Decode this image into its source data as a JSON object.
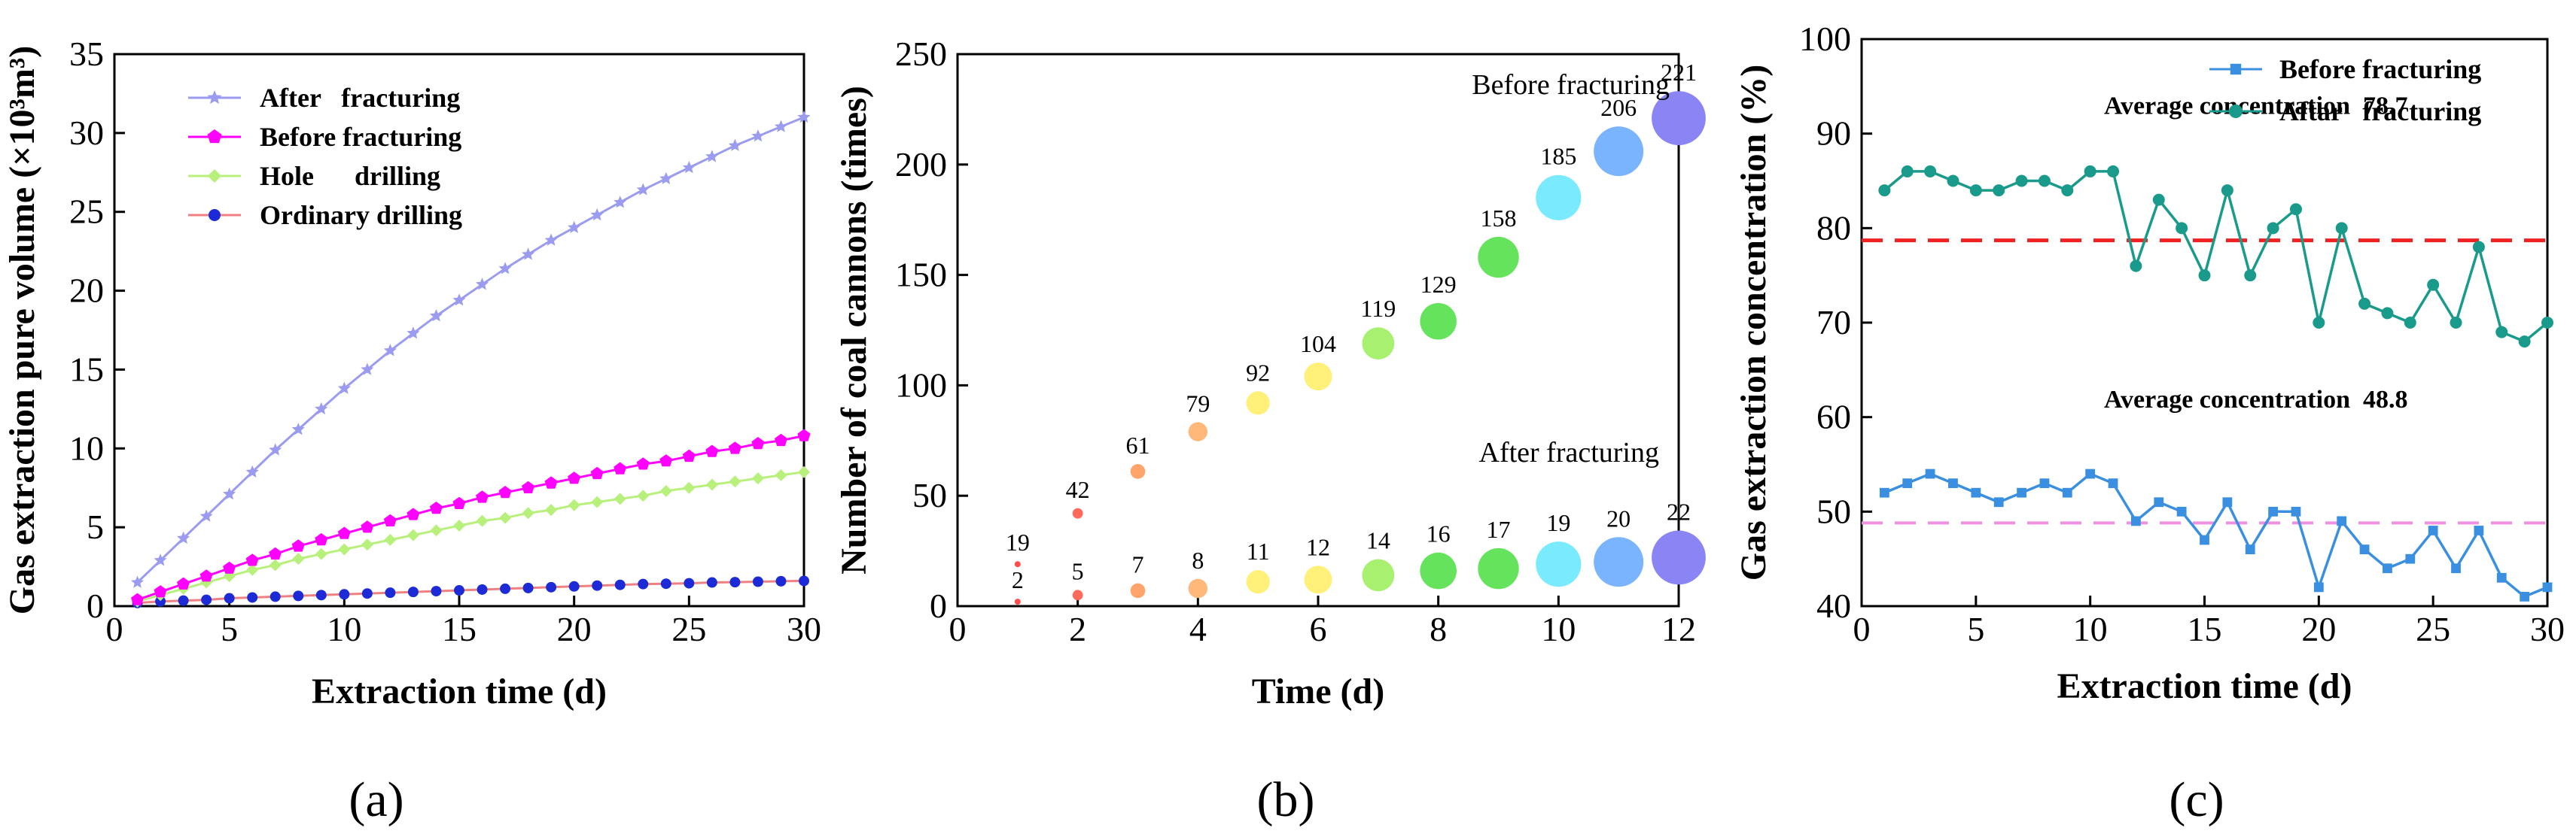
{
  "chart_data": [
    {
      "id": "a",
      "type": "line",
      "panel_label": "(a)",
      "xlabel": "Extraction time (d)",
      "ylabel": "Gas extraction pure volume (×10³m³)",
      "xlim": [
        0,
        30
      ],
      "ylim": [
        0,
        35
      ],
      "xticks": [
        "0",
        "5",
        "10",
        "15",
        "20",
        "25",
        "30"
      ],
      "yticks": [
        "0",
        "5",
        "10",
        "15",
        "20",
        "25",
        "30",
        "35"
      ],
      "legend_position": "top-left",
      "x": [
        1,
        2,
        3,
        4,
        5,
        6,
        7,
        8,
        9,
        10,
        11,
        12,
        13,
        14,
        15,
        16,
        17,
        18,
        19,
        20,
        21,
        22,
        23,
        24,
        25,
        26,
        27,
        28,
        29,
        30
      ],
      "series": [
        {
          "name": "After   fracturing",
          "color": "#9b9bf0",
          "marker": "star",
          "values": [
            1.5,
            2.9,
            4.3,
            5.7,
            7.1,
            8.5,
            9.9,
            11.2,
            12.5,
            13.8,
            15.0,
            16.2,
            17.3,
            18.4,
            19.4,
            20.4,
            21.4,
            22.3,
            23.2,
            24.0,
            24.8,
            25.6,
            26.4,
            27.1,
            27.8,
            28.5,
            29.2,
            29.8,
            30.4,
            31.0
          ]
        },
        {
          "name": "Before fracturing",
          "color": "#ff00ff",
          "marker": "pentagon",
          "values": [
            0.4,
            0.9,
            1.4,
            1.9,
            2.4,
            2.9,
            3.3,
            3.8,
            4.2,
            4.6,
            5.0,
            5.4,
            5.8,
            6.2,
            6.5,
            6.9,
            7.2,
            7.5,
            7.8,
            8.1,
            8.4,
            8.7,
            9.0,
            9.2,
            9.5,
            9.8,
            10.0,
            10.3,
            10.5,
            10.8
          ]
        },
        {
          "name": "Hole      drilling",
          "color": "#b8f07c",
          "marker": "diamond",
          "values": [
            0.3,
            0.7,
            1.1,
            1.5,
            1.9,
            2.3,
            2.6,
            3.0,
            3.3,
            3.6,
            3.9,
            4.2,
            4.5,
            4.8,
            5.1,
            5.4,
            5.6,
            5.9,
            6.1,
            6.4,
            6.6,
            6.8,
            7.0,
            7.3,
            7.5,
            7.7,
            7.9,
            8.1,
            8.3,
            8.5
          ]
        },
        {
          "name": "Ordinary drilling",
          "color": "#1c2bd6",
          "line_color": "#f08080",
          "marker": "circle",
          "values": [
            0.2,
            0.3,
            0.35,
            0.4,
            0.5,
            0.55,
            0.6,
            0.65,
            0.7,
            0.75,
            0.8,
            0.85,
            0.9,
            0.95,
            1.0,
            1.05,
            1.1,
            1.15,
            1.2,
            1.25,
            1.3,
            1.35,
            1.4,
            1.42,
            1.45,
            1.5,
            1.52,
            1.55,
            1.58,
            1.6
          ]
        }
      ]
    },
    {
      "id": "b",
      "type": "scatter",
      "panel_label": "(b)",
      "xlabel": "Time (d)",
      "ylabel": "Number of coal cannons (times)",
      "xlim": [
        0,
        12
      ],
      "ylim": [
        0,
        250
      ],
      "xticks": [
        "0",
        "2",
        "4",
        "6",
        "8",
        "10",
        "12"
      ],
      "yticks": [
        "0",
        "50",
        "100",
        "150",
        "200",
        "250"
      ],
      "annotations": [
        "Before fracturing",
        "After fracturing"
      ],
      "x": [
        1,
        2,
        3,
        4,
        5,
        6,
        7,
        8,
        9,
        10,
        11,
        12
      ],
      "colors": [
        "#ff4d4d",
        "#ff6a5c",
        "#ffa56b",
        "#ffb77a",
        "#fff07a",
        "#fff07a",
        "#a8f070",
        "#66e35c",
        "#66e35c",
        "#7aebff",
        "#7ab4ff",
        "#8a84f5"
      ],
      "series": [
        {
          "name": "Before fracturing",
          "values": [
            19,
            42,
            61,
            79,
            92,
            104,
            119,
            129,
            158,
            185,
            206,
            221
          ],
          "labels": [
            "19",
            "42",
            "61",
            "79",
            "92",
            "104",
            "119",
            "129",
            "158",
            "185",
            "206",
            "221"
          ]
        },
        {
          "name": "After fracturing",
          "values": [
            2,
            5,
            7,
            8,
            11,
            12,
            14,
            16,
            17,
            19,
            20,
            22
          ],
          "labels": [
            "2",
            "5",
            "7",
            "8",
            "11",
            "12",
            "14",
            "16",
            "17",
            "19",
            "20",
            "22"
          ]
        }
      ]
    },
    {
      "id": "c",
      "type": "line",
      "panel_label": "(c)",
      "xlabel": "Extraction time (d)",
      "ylabel": "Gas extraction concentration (%)",
      "xlim": [
        0,
        30
      ],
      "ylim": [
        40,
        100
      ],
      "xticks": [
        "0",
        "5",
        "10",
        "15",
        "20",
        "25",
        "30"
      ],
      "yticks": [
        "40",
        "50",
        "60",
        "70",
        "80",
        "90",
        "100"
      ],
      "legend_position": "top-right",
      "x": [
        1,
        2,
        3,
        4,
        5,
        6,
        7,
        8,
        9,
        10,
        11,
        12,
        13,
        14,
        15,
        16,
        17,
        18,
        19,
        20,
        21,
        22,
        23,
        24,
        25,
        26,
        27,
        28,
        29,
        30
      ],
      "series": [
        {
          "name": "Before fracturing",
          "color": "#3a8fe0",
          "marker": "square",
          "values": [
            52,
            53,
            54,
            53,
            52,
            51,
            52,
            53,
            52,
            54,
            53,
            49,
            51,
            50,
            47,
            51,
            46,
            50,
            50,
            42,
            49,
            46,
            44,
            45,
            48,
            44,
            48,
            43,
            41,
            42
          ]
        },
        {
          "name": "Aftar   fracturing",
          "color": "#1a9a8a",
          "marker": "circle",
          "values": [
            84,
            86,
            86,
            85,
            84,
            84,
            85,
            85,
            84,
            86,
            86,
            76,
            83,
            80,
            75,
            84,
            75,
            80,
            82,
            70,
            80,
            72,
            71,
            70,
            74,
            70,
            78,
            69,
            68,
            70
          ]
        }
      ],
      "reference_lines": [
        {
          "value": 78.7,
          "color": "#ee2222",
          "label": "Average concentration  78.7"
        },
        {
          "value": 48.8,
          "color": "#f090e0",
          "label": "Average concentration  48.8"
        }
      ]
    }
  ]
}
